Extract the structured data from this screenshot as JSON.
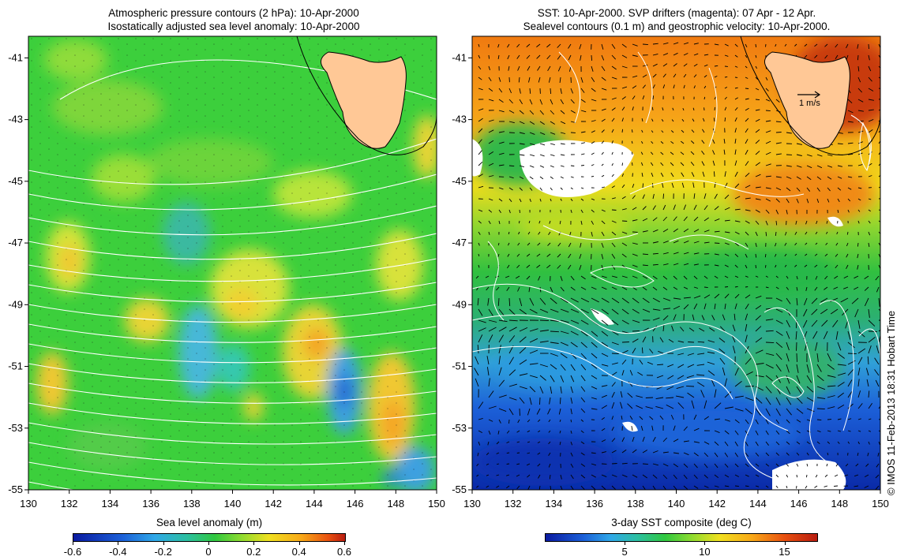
{
  "left_panel": {
    "title_line1": "Atmospheric pressure contours (2 hPa): 10-Apr-2000",
    "title_line2": "Isostatically adjusted sea level anomaly: 10-Apr-2000",
    "colorbar_title": "Sea level anomaly (m)",
    "colorbar_ticks": [
      "-0.6",
      "-0.4",
      "-0.2",
      "0",
      "0.2",
      "0.4",
      "0.6"
    ]
  },
  "right_panel": {
    "title_line1": "SST: 10-Apr-2000. SVP drifters (magenta): 07 Apr - 12 Apr.",
    "title_line2": "Sealevel contours (0.1 m) and geostrophic velocity: 10-Apr-2000.",
    "colorbar_title": "3-day SST composite (deg C)",
    "colorbar_ticks": [
      "5",
      "10",
      "15"
    ],
    "velocity_scale_label": "1 m/s"
  },
  "map_extent": {
    "lon_min": 130,
    "lon_max": 150,
    "lat_min": -55,
    "lat_max": -40.3
  },
  "lon_ticks": [
    "130",
    "132",
    "134",
    "136",
    "138",
    "140",
    "142",
    "144",
    "146",
    "148",
    "150"
  ],
  "lat_ticks": [
    "-41",
    "-43",
    "-45",
    "-47",
    "-49",
    "-51",
    "-53",
    "-55"
  ],
  "credit": "© IMOS 11-Feb-2013 18:31 Hobart Time",
  "colors": {
    "land": "#ffc896",
    "contour": "#ffffff",
    "coast": "#000000"
  }
}
